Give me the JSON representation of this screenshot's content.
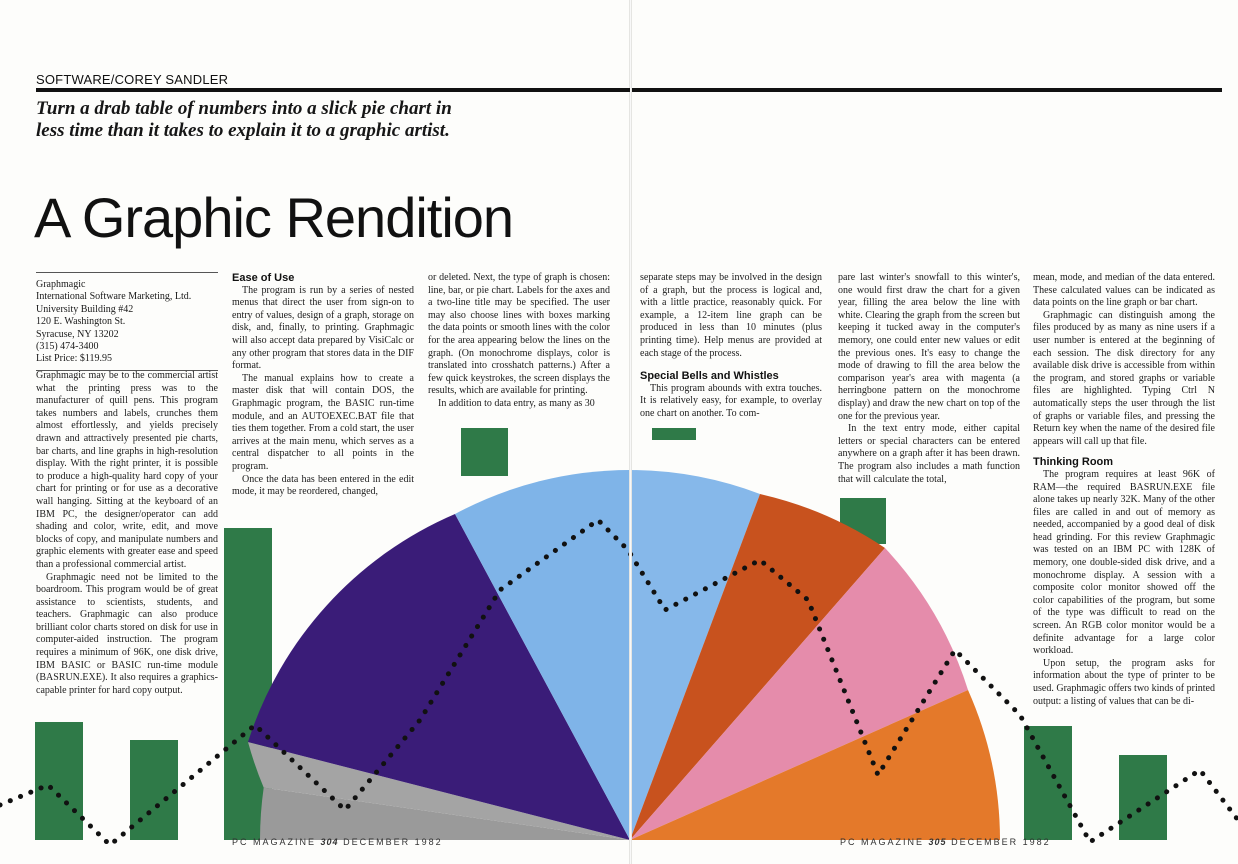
{
  "header": {
    "department": "SOFTWARE/COREY SANDLER",
    "deck": "Turn a drab table of numbers into a slick pie chart in less time than it takes to explain it to a graphic artist.",
    "title": "A Graphic Rendition"
  },
  "info_box": {
    "lines": [
      "Graphmagic",
      "International Software Marketing, Ltd.",
      "University Building #42",
      "120 E. Washington St.",
      "Syracuse, NY 13202",
      "(315) 474-3400",
      "List Price: $119.95"
    ]
  },
  "col1": {
    "p1": "Graphmagic may be to the commercial artist what the printing press was to the manufacturer of quill pens. This program takes numbers and labels, crunches them almost effortlessly, and yields precisely drawn and attractively presented pie charts, bar charts, and line graphs in high-resolution display. With the right printer, it is possible to produce a high-quality hard copy of your chart for printing or for use as a decorative wall hanging. Sitting at the keyboard of an IBM PC, the designer/operator can add shading and color, write, edit, and move blocks of copy, and manipulate numbers and graphic elements with greater ease and speed than a professional commercial artist.",
    "p2": "Graphmagic need not be limited to the boardroom. This program would be of great assistance to scientists, students, and teachers. Graphmagic can also produce brilliant color charts stored on disk for use in computer-aided instruction. The program requires a minimum of 96K, one disk drive, IBM BASIC or BASIC run-time module (BASRUN.EXE). It also requires a graphics-capable printer for hard copy output."
  },
  "col2": {
    "heading": "Ease of Use",
    "p1": "The program is run by a series of nested menus that direct the user from sign-on to entry of values, design of a graph, storage on disk, and, finally, to printing. Graphmagic will also accept data prepared by VisiCalc or any other program that stores data in the DIF format.",
    "p2": "The manual explains how to create a master disk that will contain DOS, the Graphmagic program, the BASIC run-time module, and an AUTOEXEC.BAT file that ties them together. From a cold start, the user arrives at the main menu, which serves as a central dispatcher to all points in the program.",
    "p3": "Once the data has been entered in the edit mode, it may be reordered, changed,"
  },
  "col3": {
    "p1": "or deleted. Next, the type of graph is chosen: line, bar, or pie chart. Labels for the axes and a two-line title may be specified. The user may also choose lines with boxes marking the data points or smooth lines with the color for the area appearing below the lines on the graph. (On monochrome displays, color is translated into crosshatch patterns.) After a few quick keystrokes, the screen displays the results, which are available for printing.",
    "p2": "In addition to data entry, as many as 30"
  },
  "col4": {
    "p1": "separate steps may be involved in the design of a graph, but the process is logical and, with a little practice, reasonably quick. For example, a 12-item line graph can be produced in less than 10 minutes (plus printing time). Help menus are provided at each stage of the process.",
    "heading": "Special Bells and Whistles",
    "p2": "This program abounds with extra touches. It is relatively easy, for example, to overlay one chart on another. To com-"
  },
  "col5": {
    "p1": "pare last winter's snowfall to this winter's, one would first draw the chart for a given year, filling the area below the line with white. Clearing the graph from the screen but keeping it tucked away in the computer's memory, one could enter new values or edit the previous ones. It's easy to change the mode of drawing to fill the area below the comparison year's area with magenta (a herringbone pattern on the monochrome display) and draw the new chart on top of the one for the previous year.",
    "p2": "In the text entry mode, either capital letters or special characters can be entered anywhere on a graph after it has been drawn. The program also includes a math function that will calculate the total,"
  },
  "col6": {
    "p1": "mean, mode, and median of the data entered. These calculated values can be indicated as data points on the line graph or bar chart.",
    "p2": "Graphmagic can distinguish among the files produced by as many as nine users if a user number is entered at the beginning of each session. The disk directory for any available disk drive is accessible from within the program, and stored graphs or variable files are highlighted. Typing Ctrl N automatically steps the user through the list of graphs or variable files, and pressing the Return key when the name of the desired file appears will call up that file.",
    "heading": "Thinking Room",
    "p3": "The program requires at least 96K of RAM—the required BASRUN.EXE file alone takes up nearly 32K. Many of the other files are called in and out of memory as needed, accompanied by a good deal of disk head grinding. For this review Graphmagic was tested on an IBM PC with 128K of memory, one double-sided disk drive, and a monochrome display. A session with a composite color monitor showed off the color capabilities of the program, but some of the type was difficult to read on the screen. An RGB color monitor would be a definite advantage for a large color workload.",
    "p4": "Upon setup, the program asks for information about the type of printer to be used. Graphmagic offers two kinds of printed output: a listing of values that can be di-"
  },
  "folios": {
    "left_prefix": "PC MAGAZINE",
    "left_number": "304",
    "left_date": "DECEMBER 1982",
    "right_prefix": "PC MAGAZINE",
    "right_number": "305",
    "right_date": "DECEMBER 1982"
  },
  "colors": {
    "pie_gray": "#9a9a9a",
    "pie_indigo": "#3a1c78",
    "pie_lightblue": "#7fb4e8",
    "pie_rust": "#c8521e",
    "pie_pink": "#e58cab",
    "pie_orange": "#e4792a",
    "bar_green": "#2f7a48"
  }
}
